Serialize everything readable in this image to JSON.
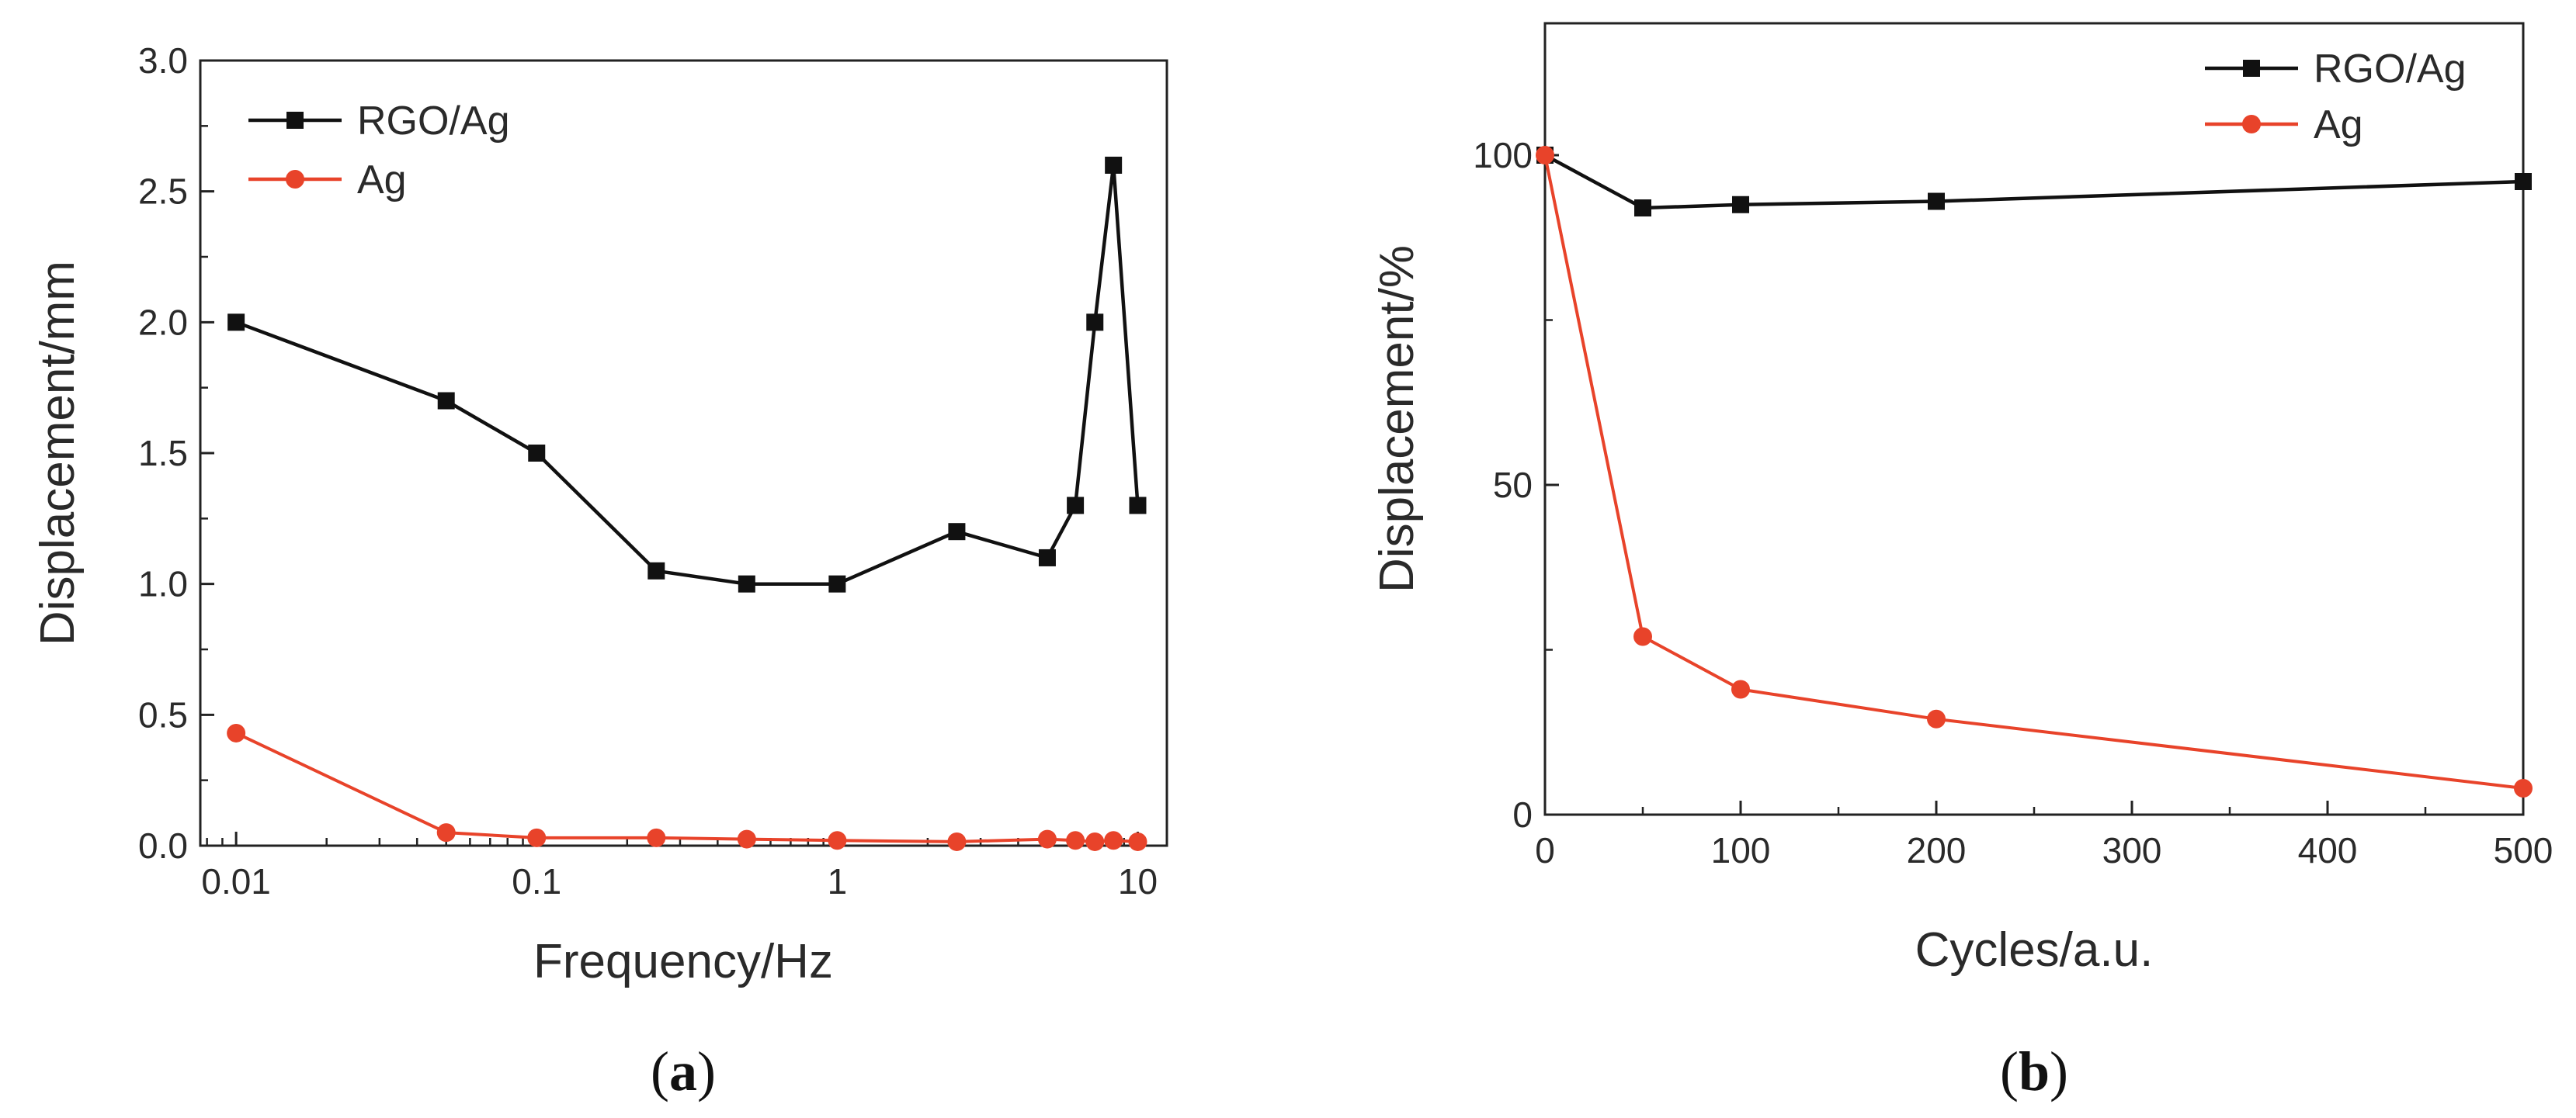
{
  "chart_data": [
    {
      "type": "line",
      "panel_label": "a",
      "xlabel": "Frequency/Hz",
      "ylabel": "Displacement/mm",
      "xscale": "log",
      "xlim": [
        0.0076,
        12.5
      ],
      "ylim": [
        0,
        3.0
      ],
      "xticks": [
        {
          "value": 0.01,
          "label": "0.01"
        },
        {
          "value": 0.1,
          "label": "0.1"
        },
        {
          "value": 1,
          "label": "1"
        },
        {
          "value": 10,
          "label": "10"
        }
      ],
      "yticks": [
        {
          "value": 0,
          "label": "0.0"
        },
        {
          "value": 0.5,
          "label": "0.5"
        },
        {
          "value": 1.0,
          "label": "1.0"
        },
        {
          "value": 1.5,
          "label": "1.5"
        },
        {
          "value": 2.0,
          "label": "2.0"
        },
        {
          "value": 2.5,
          "label": "2.5"
        },
        {
          "value": 3.0,
          "label": "3.0"
        }
      ],
      "legend": "top-left",
      "grid": false,
      "series": [
        {
          "name": "RGO/Ag",
          "color": "#111111",
          "marker": "square",
          "x": [
            0.01,
            0.05,
            0.1,
            0.25,
            0.5,
            1,
            2.5,
            5,
            6.2,
            7.2,
            8.3,
            10
          ],
          "y": [
            2.0,
            1.7,
            1.5,
            1.05,
            1.0,
            1.0,
            1.2,
            1.1,
            1.3,
            2.0,
            2.6,
            1.3
          ]
        },
        {
          "name": "Ag",
          "color": "#e8432a",
          "marker": "circle",
          "x": [
            0.01,
            0.05,
            0.1,
            0.25,
            0.5,
            1,
            2.5,
            5,
            6.2,
            7.2,
            8.3,
            10
          ],
          "y": [
            0.43,
            0.05,
            0.03,
            0.03,
            0.025,
            0.02,
            0.015,
            0.025,
            0.02,
            0.015,
            0.02,
            0.015
          ]
        }
      ]
    },
    {
      "type": "line",
      "panel_label": "b",
      "xlabel": "Cycles/a.u.",
      "ylabel": "Displacement/%",
      "xscale": "linear",
      "xlim": [
        0,
        500
      ],
      "ylim": [
        0,
        120
      ],
      "xticks": [
        {
          "value": 0,
          "label": "0"
        },
        {
          "value": 100,
          "label": "100"
        },
        {
          "value": 200,
          "label": "200"
        },
        {
          "value": 300,
          "label": "300"
        },
        {
          "value": 400,
          "label": "400"
        },
        {
          "value": 500,
          "label": "500"
        }
      ],
      "yticks": [
        {
          "value": 0,
          "label": "0"
        },
        {
          "value": 50,
          "label": "50"
        },
        {
          "value": 100,
          "label": "100"
        }
      ],
      "legend": "top-right",
      "grid": false,
      "series": [
        {
          "name": "RGO/Ag",
          "color": "#111111",
          "marker": "square",
          "x": [
            0,
            50,
            100,
            200,
            500
          ],
          "y": [
            100,
            92,
            92.5,
            93,
            96
          ]
        },
        {
          "name": "Ag",
          "color": "#e8432a",
          "marker": "circle",
          "x": [
            0,
            50,
            100,
            200,
            500
          ],
          "y": [
            100,
            27,
            19,
            14.5,
            4
          ]
        }
      ]
    }
  ]
}
